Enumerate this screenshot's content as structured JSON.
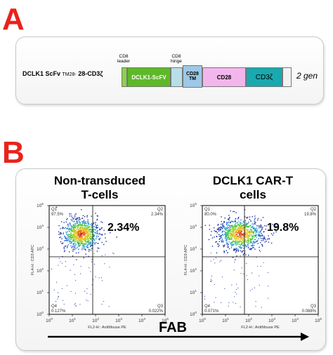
{
  "panel_a": {
    "letter": "A",
    "construct_name": "DCLK1 ScFv",
    "construct_sub": "TM28-",
    "construct_tail": " 28-CD3ζ",
    "generation": "2 gen",
    "top_labels": {
      "cd8_leader": "CD8\nleader",
      "cd8_hinge": "CD8\nhinge"
    },
    "segments": {
      "scfv": "DCLK1-ScFV",
      "cd28tm": "CD28\nTM",
      "cd28": "CD28",
      "cd3z": "CD3ζ"
    },
    "colors": {
      "leader": "#8cd24c",
      "scfv": "#5fb82a",
      "hinge": "#b8dfe8",
      "cd28tm": "#9ec8e6",
      "cd28": "#f2b6ec",
      "cd3z": "#1aa9ae",
      "tail": "#f2f2f2"
    }
  },
  "panel_b": {
    "letter": "B",
    "arrow_label": "FAB",
    "plots": [
      {
        "title": "Non-transduced\nT-cells",
        "percent_label": "2.34%",
        "q1": "Q1\n97.5%",
        "q2": "Q2\n2.34%",
        "q3": "Q3\n0.022%",
        "q4": "Q4\n0.127%",
        "x_axis": "FL2-H:: AntiMouse PE",
        "y_axis": "FL4-H:: CD3 APC",
        "ticks": [
          "10",
          "10",
          "10",
          "10",
          "10",
          "10"
        ],
        "tick_exp": [
          "0",
          "1",
          "2",
          "3",
          "4",
          "5"
        ]
      },
      {
        "title": "DCLK1 CAR-T\ncells",
        "percent_label": "19.8%",
        "q1": "Q1\n80.0%",
        "q2": "Q2\n19.8%",
        "q3": "Q3\n0.088%",
        "q4": "Q4\n0.071%",
        "x_axis": "FL2-H:: AntiMouse PE",
        "y_axis": "FL4-H:: CD3 APC",
        "ticks": [
          "10",
          "10",
          "10",
          "10",
          "10",
          "10"
        ],
        "tick_exp": [
          "0",
          "1",
          "2",
          "3",
          "4",
          "5"
        ]
      }
    ]
  }
}
